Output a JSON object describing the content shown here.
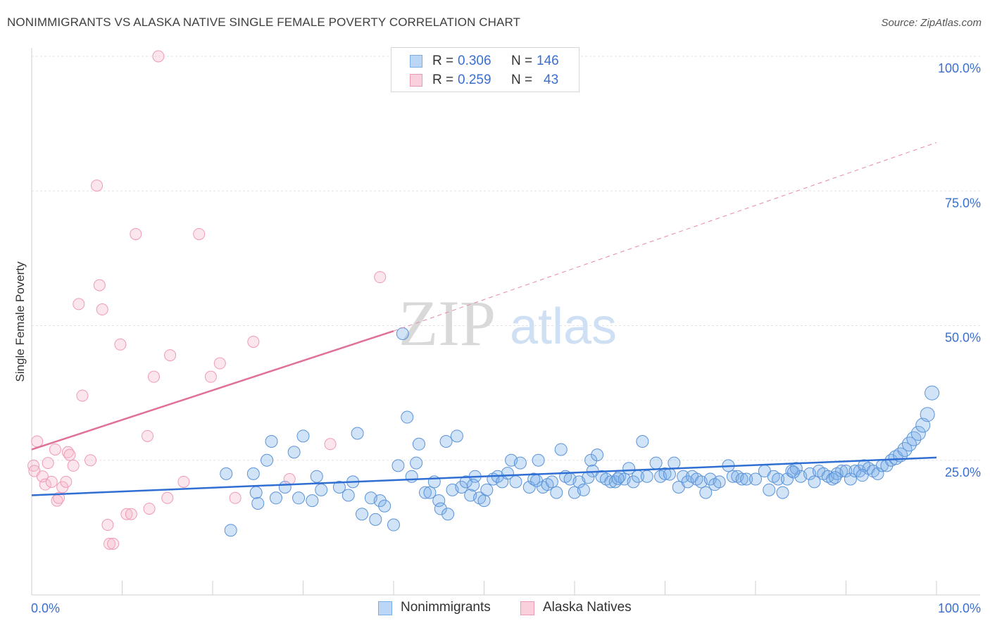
{
  "title": "NONIMMIGRANTS VS ALASKA NATIVE SINGLE FEMALE POVERTY CORRELATION CHART",
  "source": "Source: ZipAtlas.com",
  "watermark": {
    "zip": "ZIP",
    "atlas": "atlas"
  },
  "legend": {
    "rows": [
      {
        "r_label": "R =",
        "r_value": "0.306",
        "n_label": "N =",
        "n_value": "146",
        "color": "#9cc1f0"
      },
      {
        "r_label": "R =",
        "r_value": "0.259",
        "n_label": "N =",
        "n_value": "43",
        "color": "#f6b8cb"
      }
    ]
  },
  "bottom_legend": {
    "series1": "Nonimmigrants",
    "series2": "Alaska Natives"
  },
  "chart_data": {
    "type": "scatter",
    "title": "NONIMMIGRANTS VS ALASKA NATIVE SINGLE FEMALE POVERTY CORRELATION CHART",
    "xlabel": "",
    "ylabel": "Single Female Poverty",
    "xlim": [
      0,
      100
    ],
    "ylim": [
      0,
      100
    ],
    "x_tick_labels": [
      "0.0%",
      "100.0%"
    ],
    "y_tick_labels": [
      "25.0%",
      "50.0%",
      "75.0%",
      "100.0%"
    ],
    "y_ticks": [
      25,
      50,
      75,
      100
    ],
    "grid": true,
    "legend_position": "top-center",
    "series": [
      {
        "name": "Nonimmigrants",
        "color": "#7aaee8",
        "stroke": "#5b93d8",
        "trend": {
          "x1": 0,
          "y1": 18.5,
          "x2": 100,
          "y2": 25.5
        },
        "points": [
          [
            21.5,
            22.5
          ],
          [
            24.5,
            22.5
          ],
          [
            26,
            25
          ],
          [
            26.5,
            28.5
          ],
          [
            29,
            26.5
          ],
          [
            30,
            29.5
          ],
          [
            27,
            18
          ],
          [
            29.5,
            18
          ],
          [
            25,
            17
          ],
          [
            22,
            12
          ],
          [
            24.8,
            19
          ],
          [
            28,
            20
          ],
          [
            31,
            17.5
          ],
          [
            31.5,
            22
          ],
          [
            32,
            19.5
          ],
          [
            34,
            20
          ],
          [
            35,
            18.5
          ],
          [
            35.5,
            21
          ],
          [
            36,
            30
          ],
          [
            36.5,
            15
          ],
          [
            37.5,
            18
          ],
          [
            38,
            14
          ],
          [
            38.5,
            17.5
          ],
          [
            39,
            16.5
          ],
          [
            40,
            13
          ],
          [
            40.5,
            24
          ],
          [
            41,
            48.5
          ],
          [
            41.5,
            33
          ],
          [
            42,
            22
          ],
          [
            42.5,
            24.5
          ],
          [
            42.8,
            28
          ],
          [
            43.5,
            19
          ],
          [
            44,
            19
          ],
          [
            44.5,
            21
          ],
          [
            45,
            17.5
          ],
          [
            45.2,
            16
          ],
          [
            45.8,
            28.5
          ],
          [
            46,
            15
          ],
          [
            46.5,
            19.5
          ],
          [
            47,
            29.5
          ],
          [
            47.5,
            20
          ],
          [
            48,
            21
          ],
          [
            48.5,
            18.5
          ],
          [
            49,
            22
          ],
          [
            49.5,
            18
          ],
          [
            50,
            17.5
          ],
          [
            50.3,
            19.5
          ],
          [
            51,
            21.5
          ],
          [
            51.5,
            22
          ],
          [
            52,
            21
          ],
          [
            53,
            25
          ],
          [
            53.5,
            21
          ],
          [
            54,
            24.5
          ],
          [
            55,
            20
          ],
          [
            55.5,
            21.5
          ],
          [
            56,
            25
          ],
          [
            56.5,
            20
          ],
          [
            57,
            20.5
          ],
          [
            57.5,
            21
          ],
          [
            58,
            19
          ],
          [
            58.5,
            27
          ],
          [
            59,
            22
          ],
          [
            59.5,
            21.5
          ],
          [
            60,
            19
          ],
          [
            60.5,
            21
          ],
          [
            61,
            19.5
          ],
          [
            61.8,
            25
          ],
          [
            62,
            23
          ],
          [
            62.5,
            26
          ],
          [
            63,
            22
          ],
          [
            63.5,
            21.5
          ],
          [
            64,
            21
          ],
          [
            64.5,
            21
          ],
          [
            65,
            22
          ],
          [
            65.5,
            21.5
          ],
          [
            66,
            23.5
          ],
          [
            66.5,
            21
          ],
          [
            67,
            22
          ],
          [
            67.5,
            28.5
          ],
          [
            68,
            22
          ],
          [
            69,
            24.5
          ],
          [
            69.5,
            22
          ],
          [
            70,
            22.5
          ],
          [
            71,
            24.5
          ],
          [
            71.5,
            20
          ],
          [
            72,
            22
          ],
          [
            72.5,
            21
          ],
          [
            73,
            22
          ],
          [
            73.5,
            21.5
          ],
          [
            74,
            21
          ],
          [
            74.5,
            19
          ],
          [
            75,
            21.5
          ],
          [
            75.5,
            20.5
          ],
          [
            76,
            21
          ],
          [
            77,
            24
          ],
          [
            77.5,
            22
          ],
          [
            78,
            22
          ],
          [
            78.5,
            21.5
          ],
          [
            79,
            21.5
          ],
          [
            80,
            21.5
          ],
          [
            81,
            23
          ],
          [
            81.5,
            19.5
          ],
          [
            82,
            22
          ],
          [
            82.5,
            21.5
          ],
          [
            83,
            19
          ],
          [
            83.5,
            21.5
          ],
          [
            84,
            23
          ],
          [
            84.5,
            23.5
          ],
          [
            85,
            22
          ],
          [
            86,
            22.5
          ],
          [
            86.5,
            21
          ],
          [
            87,
            23
          ],
          [
            87.5,
            22.5
          ],
          [
            88,
            22
          ],
          [
            88.5,
            21.5
          ],
          [
            89,
            22.5
          ],
          [
            89.5,
            23
          ],
          [
            90,
            23
          ],
          [
            90.5,
            21.5
          ],
          [
            91,
            23
          ],
          [
            91.5,
            23
          ],
          [
            92,
            24
          ],
          [
            92.5,
            23.5
          ],
          [
            93,
            23
          ],
          [
            93.5,
            22.5
          ],
          [
            94,
            24
          ],
          [
            94.5,
            24
          ],
          [
            95,
            25
          ],
          [
            95.5,
            25.5
          ],
          [
            96,
            26
          ],
          [
            96.5,
            27
          ],
          [
            97,
            28
          ],
          [
            97.5,
            29
          ],
          [
            98,
            30
          ],
          [
            98.5,
            31.5
          ],
          [
            99,
            33.5
          ],
          [
            99.5,
            37.5
          ],
          [
            61.5,
            21.8
          ],
          [
            70.5,
            22.4
          ],
          [
            84.2,
            22.8
          ],
          [
            55.8,
            21.2
          ],
          [
            64.8,
            21.6
          ],
          [
            48.8,
            20.4
          ],
          [
            52.6,
            22.6
          ],
          [
            88.8,
            21.8
          ],
          [
            91.8,
            22.2
          ]
        ]
      },
      {
        "name": "Alaska Natives",
        "color": "#f6b8cb",
        "stroke": "#ef9ab3",
        "trend": {
          "x1": 0,
          "y1": 27,
          "x2": 40,
          "y2": 49
        },
        "trend_extension": {
          "x1": 40,
          "y1": 49,
          "x2": 100,
          "y2": 84
        },
        "points": [
          [
            0.2,
            24
          ],
          [
            0.3,
            23
          ],
          [
            0.6,
            28.5
          ],
          [
            1.2,
            22
          ],
          [
            1.5,
            20.5
          ],
          [
            1.8,
            24.5
          ],
          [
            2.2,
            21
          ],
          [
            2.6,
            27
          ],
          [
            2.8,
            17.5
          ],
          [
            3,
            18
          ],
          [
            3.4,
            20
          ],
          [
            3.8,
            21
          ],
          [
            4,
            26.5
          ],
          [
            4.2,
            26
          ],
          [
            4.6,
            24
          ],
          [
            5.2,
            54
          ],
          [
            5.6,
            37
          ],
          [
            6.5,
            25
          ],
          [
            7.2,
            76
          ],
          [
            7.5,
            57.5
          ],
          [
            7.8,
            53
          ],
          [
            8.4,
            13
          ],
          [
            8.6,
            9.5
          ],
          [
            9,
            9.5
          ],
          [
            9.8,
            46.5
          ],
          [
            10.5,
            15
          ],
          [
            11,
            15
          ],
          [
            11.5,
            67
          ],
          [
            12.8,
            29.5
          ],
          [
            13,
            16
          ],
          [
            13.5,
            40.5
          ],
          [
            14,
            100
          ],
          [
            15,
            18
          ],
          [
            15.3,
            44.5
          ],
          [
            16.8,
            21
          ],
          [
            18.5,
            67
          ],
          [
            19.8,
            40.5
          ],
          [
            20.8,
            43
          ],
          [
            22.5,
            18
          ],
          [
            24.5,
            47
          ],
          [
            28.5,
            21.5
          ],
          [
            33,
            28
          ],
          [
            38.5,
            59
          ]
        ]
      }
    ]
  }
}
